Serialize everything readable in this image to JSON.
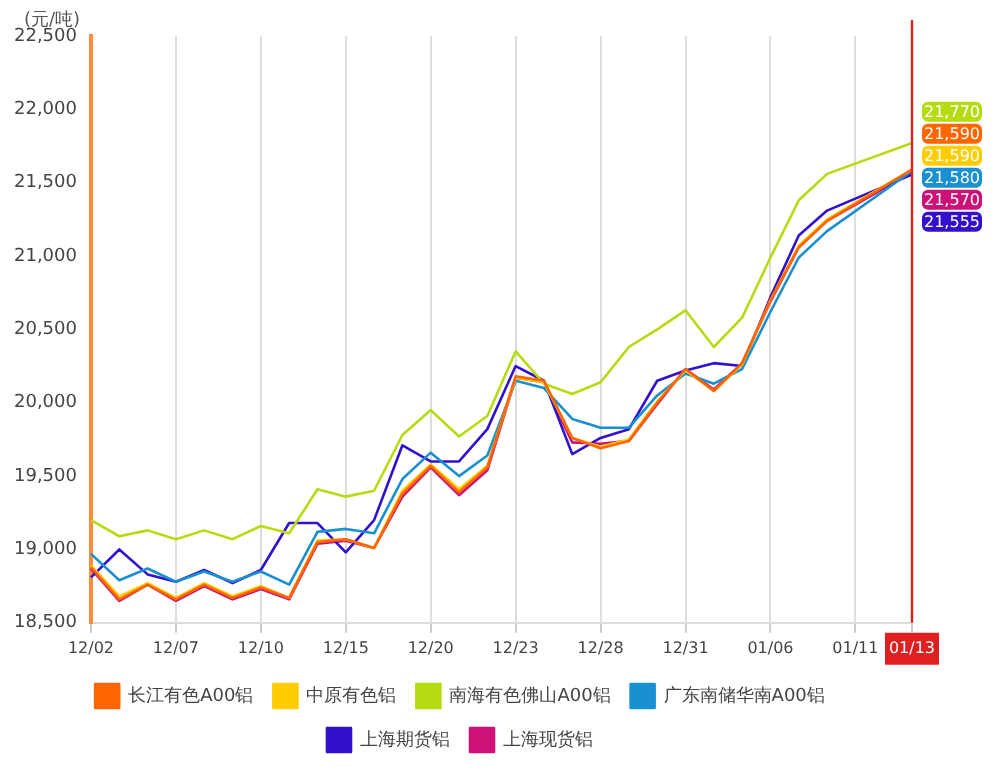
{
  "chart_data": {
    "type": "line",
    "ylabel": "(元/吨)",
    "categories": [
      "12/02",
      null,
      null,
      "12/07",
      null,
      null,
      "12/10",
      null,
      null,
      "12/15",
      null,
      null,
      "12/20",
      null,
      null,
      "12/23",
      null,
      null,
      "12/28",
      null,
      null,
      "12/31",
      null,
      null,
      "01/06",
      null,
      null,
      "01/11",
      null,
      "01/13"
    ],
    "series": [
      {
        "name": "长江有色A00铝",
        "color": "#ff6600",
        "values": [
          18880,
          18660,
          18760,
          18660,
          18760,
          18670,
          18740,
          18670,
          19050,
          19070,
          19010,
          19380,
          19570,
          19390,
          19560,
          20180,
          20150,
          19760,
          19690,
          19740,
          20000,
          20230,
          20080,
          20270,
          20700,
          21060,
          21240,
          null,
          null,
          21590
        ],
        "value_labels": [
          null,
          null,
          null,
          null,
          null,
          null,
          null,
          null,
          null,
          null,
          null,
          null,
          null,
          null,
          null,
          null,
          null,
          null,
          null,
          null,
          null,
          null,
          null,
          null,
          null,
          null,
          null,
          null,
          null,
          "21,590"
        ]
      },
      {
        "name": "中原有色铝",
        "color": "#ffcc00",
        "values": [
          18890,
          18680,
          18770,
          18670,
          18770,
          18680,
          18750,
          18670,
          19060,
          19070,
          19010,
          19400,
          19580,
          19410,
          19570,
          20170,
          20140,
          19760,
          19700,
          19750,
          20010,
          20220,
          20080,
          20260,
          20700,
          21070,
          21250,
          null,
          null,
          21590
        ],
        "value_labels": [
          null,
          null,
          null,
          null,
          null,
          null,
          null,
          null,
          null,
          null,
          null,
          null,
          null,
          null,
          null,
          null,
          null,
          null,
          null,
          null,
          null,
          null,
          null,
          null,
          null,
          null,
          null,
          null,
          null,
          "21,590"
        ]
      },
      {
        "name": "南海有色佛山A00铝",
        "color": "#b5dc10",
        "values": [
          19200,
          19090,
          19130,
          19070,
          19130,
          19070,
          19160,
          19110,
          19410,
          19360,
          19400,
          19780,
          19950,
          19770,
          19910,
          20350,
          20130,
          20060,
          20140,
          20380,
          20500,
          20630,
          20380,
          20580,
          20990,
          21380,
          21560,
          null,
          null,
          21770
        ],
        "value_labels": [
          null,
          null,
          null,
          null,
          null,
          null,
          null,
          null,
          null,
          null,
          null,
          null,
          null,
          null,
          null,
          null,
          null,
          null,
          null,
          null,
          null,
          null,
          null,
          null,
          null,
          null,
          null,
          null,
          null,
          "21,770"
        ]
      },
      {
        "name": "广东南储华南A00铝",
        "color": "#1a90d0",
        "values": [
          18970,
          18790,
          18870,
          18780,
          18850,
          18780,
          18850,
          18760,
          19120,
          19140,
          19110,
          19480,
          19660,
          19500,
          19640,
          20150,
          20100,
          19890,
          19830,
          19830,
          20050,
          20200,
          20130,
          20230,
          20620,
          20990,
          21170,
          null,
          null,
          21580
        ],
        "value_labels": [
          null,
          null,
          null,
          null,
          null,
          null,
          null,
          null,
          null,
          null,
          null,
          null,
          null,
          null,
          null,
          null,
          null,
          null,
          null,
          null,
          null,
          null,
          null,
          null,
          null,
          null,
          null,
          null,
          null,
          "21,580"
        ]
      },
      {
        "name": "上海期货铝",
        "color": "#3311cc",
        "values": [
          18810,
          19000,
          18830,
          18780,
          18860,
          18770,
          18860,
          19180,
          19180,
          18980,
          19200,
          19710,
          19600,
          19600,
          19820,
          20250,
          20150,
          19650,
          19760,
          19820,
          20150,
          20220,
          20270,
          20250,
          20720,
          21140,
          21310,
          null,
          null,
          21555
        ],
        "value_labels": [
          null,
          null,
          null,
          null,
          null,
          null,
          null,
          null,
          null,
          null,
          null,
          null,
          null,
          null,
          null,
          null,
          null,
          null,
          null,
          null,
          null,
          null,
          null,
          null,
          null,
          null,
          null,
          null,
          null,
          "21,555"
        ]
      },
      {
        "name": "上海现货铝",
        "color": "#cc1177",
        "values": [
          18870,
          18650,
          18760,
          18650,
          18750,
          18660,
          18730,
          18660,
          19040,
          19060,
          19010,
          19360,
          19560,
          19370,
          19540,
          20170,
          20140,
          19730,
          19720,
          19740,
          19990,
          20230,
          20090,
          20270,
          20690,
          21060,
          21240,
          null,
          null,
          21570
        ],
        "value_labels": [
          null,
          null,
          null,
          null,
          null,
          null,
          null,
          null,
          null,
          null,
          null,
          null,
          null,
          null,
          null,
          null,
          null,
          null,
          null,
          null,
          null,
          null,
          null,
          null,
          null,
          null,
          null,
          null,
          null,
          "21,570"
        ]
      }
    ],
    "ylim": [
      18500,
      22500
    ],
    "yticks": [
      {
        "value": 18500,
        "label": "18,500"
      },
      {
        "value": 19000,
        "label": "19,000"
      },
      {
        "value": 19500,
        "label": "19,500"
      },
      {
        "value": 20000,
        "label": "20,000"
      },
      {
        "value": 20500,
        "label": "20,500"
      },
      {
        "value": 21000,
        "label": "21,000"
      },
      {
        "value": 21500,
        "label": "21,500"
      },
      {
        "value": 22000,
        "label": "22,000"
      },
      {
        "value": 22500,
        "label": "22,500"
      }
    ],
    "ref_lines": [
      {
        "axis": "x",
        "value": "01/13",
        "color": "#e02020"
      }
    ],
    "grid": "x",
    "legend": "bottom",
    "marker": "none",
    "line_style": "solid"
  }
}
